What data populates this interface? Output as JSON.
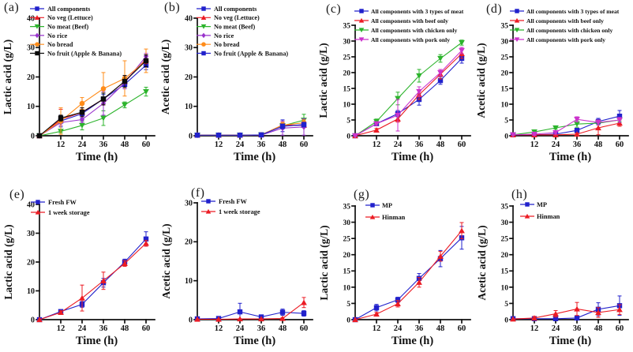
{
  "figure": {
    "background": "#ffffff",
    "description_rows": 2,
    "description_cols": 4
  },
  "colors": {
    "blue": "#2121cc",
    "red": "#ec1c24",
    "green": "#2cb42c",
    "purple": "#9933cc",
    "orange": "#ff8c1a",
    "black": "#0a0a0a",
    "magenta": "#cc33cc",
    "axis": "#111111"
  },
  "chart_data": [
    {
      "id": "a",
      "label": "(a)",
      "type": "line",
      "xlabel": "Time (h)",
      "ylabel": "Lactic acid (g/L)",
      "x": [
        0,
        12,
        24,
        36,
        48,
        60
      ],
      "xticks": [
        12,
        24,
        36,
        48,
        60
      ],
      "ylim": [
        0,
        40
      ],
      "yticks": [
        0,
        10,
        20,
        30,
        40
      ],
      "legend_position": "top-inside",
      "series": [
        {
          "name": "All components",
          "color": "#2121cc",
          "marker": "square",
          "values": [
            0,
            5,
            7.5,
            12.5,
            17.5,
            24
          ],
          "errors": [
            0,
            2,
            1.5,
            1.5,
            1.5,
            1.5
          ]
        },
        {
          "name": "No veg (Lettuce)",
          "color": "#ec1c24",
          "marker": "triangle-up",
          "values": [
            0,
            5.5,
            8,
            12.5,
            18.5,
            26
          ],
          "errors": [
            0,
            3.5,
            1.5,
            2,
            2,
            1.5
          ]
        },
        {
          "name": "No meat (Beef)",
          "color": "#2cb42c",
          "marker": "triangle-down",
          "values": [
            0,
            1.5,
            3.5,
            6,
            10.5,
            15
          ],
          "errors": [
            0,
            0.5,
            1.5,
            2.5,
            1,
            1.5
          ]
        },
        {
          "name": "No rice",
          "color": "#9933cc",
          "marker": "diamond",
          "values": [
            0,
            4.5,
            5.5,
            11,
            18,
            27
          ],
          "errors": [
            0,
            1,
            1,
            4,
            2,
            1
          ]
        },
        {
          "name": "No bread",
          "color": "#ff8c1a",
          "marker": "circle",
          "values": [
            0,
            5,
            11,
            16,
            19.5,
            25.5
          ],
          "errors": [
            0,
            4.5,
            2,
            5.5,
            6,
            4
          ]
        },
        {
          "name": "No fruit (Apple & Banana)",
          "color": "#0a0a0a",
          "marker": "square",
          "values": [
            0,
            6,
            8,
            12.5,
            18.5,
            25.5
          ],
          "errors": [
            0,
            1,
            1.5,
            2,
            2,
            2
          ]
        }
      ]
    },
    {
      "id": "b",
      "label": "(b)",
      "type": "line",
      "xlabel": "Time (h)",
      "ylabel": "Acetic acid (g/L)",
      "x": [
        0,
        12,
        24,
        36,
        48,
        60
      ],
      "xticks": [
        12,
        24,
        36,
        48,
        60
      ],
      "ylim": [
        0,
        40
      ],
      "yticks": [
        0,
        10,
        20,
        30,
        40
      ],
      "legend_position": "top-inside",
      "series": [
        {
          "name": "All components",
          "color": "#2121cc",
          "marker": "square",
          "values": [
            0.2,
            0.2,
            0.2,
            0.3,
            3.4,
            3.6
          ],
          "errors": [
            0,
            0,
            0,
            0,
            2,
            0.6
          ]
        },
        {
          "name": "No veg (Lettuce)",
          "color": "#ec1c24",
          "marker": "triangle-up",
          "values": [
            0.2,
            0.2,
            0.2,
            0.3,
            3.6,
            3.6
          ],
          "errors": [
            0,
            0,
            0,
            0,
            0.8,
            0.6
          ]
        },
        {
          "name": "No meat (Beef)",
          "color": "#2cb42c",
          "marker": "triangle-down",
          "values": [
            0.2,
            0.2,
            0.2,
            0.3,
            3.4,
            5.3
          ],
          "errors": [
            0,
            0,
            0,
            0,
            0.6,
            2
          ]
        },
        {
          "name": "No rice",
          "color": "#9933cc",
          "marker": "diamond",
          "values": [
            0.2,
            0.2,
            0.2,
            0.2,
            2.6,
            3
          ],
          "errors": [
            0,
            0,
            0,
            0,
            2.4,
            2.8
          ]
        },
        {
          "name": "No bread",
          "color": "#ff8c1a",
          "marker": "circle",
          "values": [
            0.2,
            0.2,
            0.2,
            0.3,
            3.6,
            4.4
          ],
          "errors": [
            0,
            0,
            0,
            0,
            1,
            1
          ]
        },
        {
          "name": "No fruit (Apple & Banana)",
          "color": "#2121cc",
          "marker": "square",
          "values": [
            0.2,
            0.2,
            0.2,
            0.3,
            3.2,
            3.8
          ],
          "errors": [
            0,
            0,
            0,
            0,
            0.8,
            0.8
          ]
        }
      ]
    },
    {
      "id": "c",
      "label": "(c)",
      "type": "line",
      "xlabel": "Time (h)",
      "ylabel": "Lactic acid (g/L)",
      "x": [
        0,
        12,
        24,
        36,
        48,
        60
      ],
      "xticks": [
        12,
        24,
        36,
        48,
        60
      ],
      "ylim": [
        0,
        35
      ],
      "yticks": [
        0,
        5,
        10,
        15,
        20,
        25,
        30,
        35
      ],
      "legend_position": "top-inside",
      "series": [
        {
          "name": "All components with 3 types of meat",
          "color": "#2121cc",
          "marker": "square",
          "values": [
            0,
            3.8,
            7,
            11.5,
            17.5,
            24.5
          ],
          "errors": [
            0,
            0.6,
            1,
            1.8,
            1.2,
            1.5
          ]
        },
        {
          "name": "All components with beef only",
          "color": "#ec1c24",
          "marker": "triangle-up",
          "values": [
            0,
            1.8,
            5.3,
            13,
            19.5,
            26
          ],
          "errors": [
            0,
            0.5,
            1,
            1.5,
            1.5,
            1.5
          ]
        },
        {
          "name": "All components with chicken only",
          "color": "#2cb42c",
          "marker": "triangle-down",
          "values": [
            0,
            4.5,
            11.8,
            19,
            24.5,
            29.5
          ],
          "errors": [
            0,
            0.8,
            2,
            2,
            1.2,
            0.8
          ]
        },
        {
          "name": "All components with pork only",
          "color": "#cc33cc",
          "marker": "triangle-down",
          "values": [
            0,
            3.8,
            6.5,
            14,
            20,
            27
          ],
          "errors": [
            0,
            0.6,
            5,
            1.5,
            1,
            1
          ]
        }
      ]
    },
    {
      "id": "d",
      "label": "(d)",
      "type": "line",
      "xlabel": "Time (h)",
      "ylabel": "Acetic acid (g/L)",
      "x": [
        0,
        12,
        24,
        36,
        48,
        60
      ],
      "xticks": [
        12,
        24,
        36,
        48,
        60
      ],
      "ylim": [
        0,
        35
      ],
      "yticks": [
        0,
        5,
        10,
        15,
        20,
        25,
        30,
        35
      ],
      "legend_position": "top-inside",
      "series": [
        {
          "name": "All components with 3 types of meat",
          "color": "#2121cc",
          "marker": "square",
          "values": [
            0.3,
            0.3,
            0.5,
            1.7,
            4.5,
            6.2
          ],
          "errors": [
            0,
            0.3,
            0.3,
            0.6,
            1,
            1.8
          ]
        },
        {
          "name": "All components with beef only",
          "color": "#ec1c24",
          "marker": "triangle-up",
          "values": [
            0.3,
            0.3,
            0.3,
            0.5,
            2.5,
            4
          ],
          "errors": [
            0,
            0,
            0,
            0.3,
            2.2,
            1
          ]
        },
        {
          "name": "All components with chicken only",
          "color": "#2cb42c",
          "marker": "triangle-down",
          "values": [
            0.3,
            1.2,
            2.5,
            3.7,
            4,
            5
          ],
          "errors": [
            0,
            0.3,
            0.4,
            1,
            0.6,
            0.6
          ]
        },
        {
          "name": "All components with pork only",
          "color": "#cc33cc",
          "marker": "triangle-down",
          "values": [
            0.3,
            0.5,
            1,
            5.2,
            4.2,
            5
          ],
          "errors": [
            0,
            0.3,
            0.5,
            0.8,
            0.8,
            0.8
          ]
        }
      ]
    },
    {
      "id": "e",
      "label": "(e)",
      "type": "line",
      "xlabel": "Time (h)",
      "ylabel": "Lactic acid (g/L)",
      "x": [
        0,
        12,
        24,
        36,
        48,
        60
      ],
      "xticks": [
        12,
        24,
        36,
        48,
        60
      ],
      "ylim": [
        0,
        40
      ],
      "yticks": [
        0,
        10,
        20,
        30,
        40
      ],
      "legend_position": "top-inside",
      "series": [
        {
          "name": "Fresh FW",
          "color": "#2121cc",
          "marker": "square",
          "values": [
            0,
            2.8,
            5.3,
            12.8,
            20,
            28
          ],
          "errors": [
            0,
            0.6,
            1,
            1.5,
            1,
            2.5
          ]
        },
        {
          "name": "1 week storage",
          "color": "#ec1c24",
          "marker": "triangle-up",
          "values": [
            0,
            2.5,
            7.5,
            13.5,
            19.5,
            26.5
          ],
          "errors": [
            0,
            0.6,
            4.5,
            3,
            1,
            1
          ]
        }
      ]
    },
    {
      "id": "f",
      "label": "(f)",
      "type": "line",
      "xlabel": "Time (h)",
      "ylabel": "Acetic acid (g/L)",
      "x": [
        0,
        12,
        24,
        36,
        48,
        60
      ],
      "xticks": [
        12,
        24,
        36,
        48,
        60
      ],
      "ylim": [
        0,
        30
      ],
      "yticks": [
        0,
        10,
        20,
        30
      ],
      "legend_position": "top-inside",
      "series": [
        {
          "name": "Fresh FW",
          "color": "#2121cc",
          "marker": "square",
          "values": [
            0.2,
            0.3,
            2,
            0.7,
            1.9,
            1.6
          ],
          "errors": [
            0,
            0.1,
            2.2,
            0.5,
            0.8,
            0.7
          ]
        },
        {
          "name": "1 week storage",
          "color": "#ec1c24",
          "marker": "triangle-up",
          "values": [
            0.1,
            0.1,
            0.2,
            0.2,
            0.3,
            4.4
          ],
          "errors": [
            0,
            0,
            0,
            0,
            0.2,
            1.3
          ]
        }
      ]
    },
    {
      "id": "g",
      "label": "(g)",
      "type": "line",
      "xlabel": "Time (h)",
      "ylabel": "Lactic acid (g/L)",
      "x": [
        0,
        12,
        24,
        36,
        48,
        60
      ],
      "xticks": [
        12,
        24,
        36,
        48,
        60
      ],
      "ylim": [
        0,
        35
      ],
      "yticks": [
        0,
        5,
        10,
        15,
        20,
        25,
        30,
        35
      ],
      "legend_position": "top-inside",
      "series": [
        {
          "name": "MP",
          "color": "#2121cc",
          "marker": "square",
          "values": [
            0,
            3.7,
            6.1,
            12.7,
            18.8,
            25.2
          ],
          "errors": [
            0,
            1,
            0.8,
            1.5,
            2.5,
            3.5
          ]
        },
        {
          "name": "Hinman",
          "color": "#ec1c24",
          "marker": "triangle-up",
          "values": [
            0,
            1.7,
            4.9,
            11.5,
            19.5,
            27.4
          ],
          "errors": [
            0,
            0.5,
            1,
            1.5,
            1.5,
            2.5
          ]
        }
      ]
    },
    {
      "id": "h",
      "label": "(h)",
      "type": "line",
      "xlabel": "Time (h)",
      "ylabel": "Acetic acid (g/L)",
      "x": [
        0,
        12,
        24,
        36,
        48,
        60
      ],
      "xticks": [
        12,
        24,
        36,
        48,
        60
      ],
      "ylim": [
        0,
        35
      ],
      "yticks": [
        0,
        5,
        10,
        15,
        20,
        25,
        30,
        35
      ],
      "legend_position": "top-inside",
      "series": [
        {
          "name": "MP",
          "color": "#2121cc",
          "marker": "square",
          "values": [
            0.3,
            0.3,
            0.3,
            0.5,
            3.2,
            4.3
          ],
          "errors": [
            0,
            0.4,
            0.4,
            0.3,
            2,
            3
          ]
        },
        {
          "name": "Hinman",
          "color": "#ec1c24",
          "marker": "triangle-up",
          "values": [
            0.2,
            0.5,
            1.8,
            3.3,
            2.2,
            3.1
          ],
          "errors": [
            0,
            0.5,
            1,
            2,
            1.5,
            1.5
          ]
        }
      ]
    }
  ]
}
